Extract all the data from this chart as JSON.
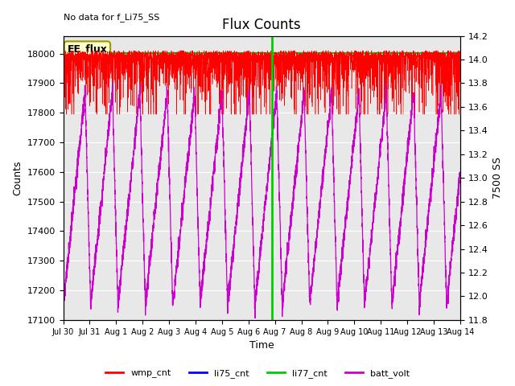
{
  "title": "Flux Counts",
  "xlabel": "Time",
  "ylabel_left": "Counts",
  "ylabel_right": "7500 SS",
  "top_left_text": "No data for f_Li75_SS",
  "annotation_text": "EE_flux",
  "background_color": "#e8e8e8",
  "ylim_left": [
    17100,
    18060
  ],
  "ylim_right": [
    11.8,
    14.2
  ],
  "yticks_left": [
    17100,
    17200,
    17300,
    17400,
    17500,
    17600,
    17700,
    17800,
    17900,
    18000
  ],
  "yticks_right": [
    11.8,
    12.0,
    12.2,
    12.4,
    12.6,
    12.8,
    13.0,
    13.2,
    13.4,
    13.6,
    13.8,
    14.0,
    14.2
  ],
  "xtick_labels": [
    "Jul 30",
    "Jul 31",
    "Aug 1",
    "Aug 2",
    "Aug 3",
    "Aug 4",
    "Aug 5",
    "Aug 6",
    "Aug 7",
    "Aug 8",
    "Aug 9",
    "Aug 10",
    "Aug 11",
    "Aug 12",
    "Aug 13",
    "Aug 14"
  ],
  "wmp_cnt_color": "#ff0000",
  "li75_cnt_color": "#0000ff",
  "li77_cnt_color": "#00cc00",
  "batt_volt_color": "#cc00cc",
  "legend_entries": [
    "wmp_cnt",
    "li75_cnt",
    "li77_cnt",
    "batt_volt"
  ],
  "legend_colors": [
    "#ff0000",
    "#0000ff",
    "#00cc00",
    "#cc00cc"
  ],
  "n_points": 4320,
  "n_days": 15,
  "wmp_base": 17995,
  "wmp_spike_depth": 200,
  "batt_min": 17150,
  "batt_max": 17870,
  "batt_cycles": 14.5,
  "li77_level": 18002,
  "li77_vline_day": 7.9,
  "figsize": [
    6.4,
    4.8
  ],
  "dpi": 100
}
